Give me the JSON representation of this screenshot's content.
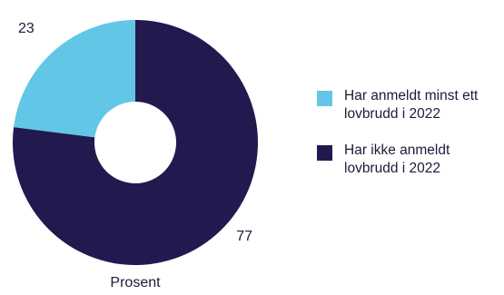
{
  "chart_data": {
    "type": "pie",
    "title": "",
    "xlabel": "Prosent",
    "ylabel": "",
    "donut": true,
    "legend_position": "right",
    "series": [
      {
        "name": "Har anmeldt minst ett lovbrudd i 2022",
        "value": 23,
        "color": "#62c7e6"
      },
      {
        "name": "Har ikke anmeldt lovbrudd i 2022",
        "value": 77,
        "color": "#221a4f"
      }
    ]
  }
}
